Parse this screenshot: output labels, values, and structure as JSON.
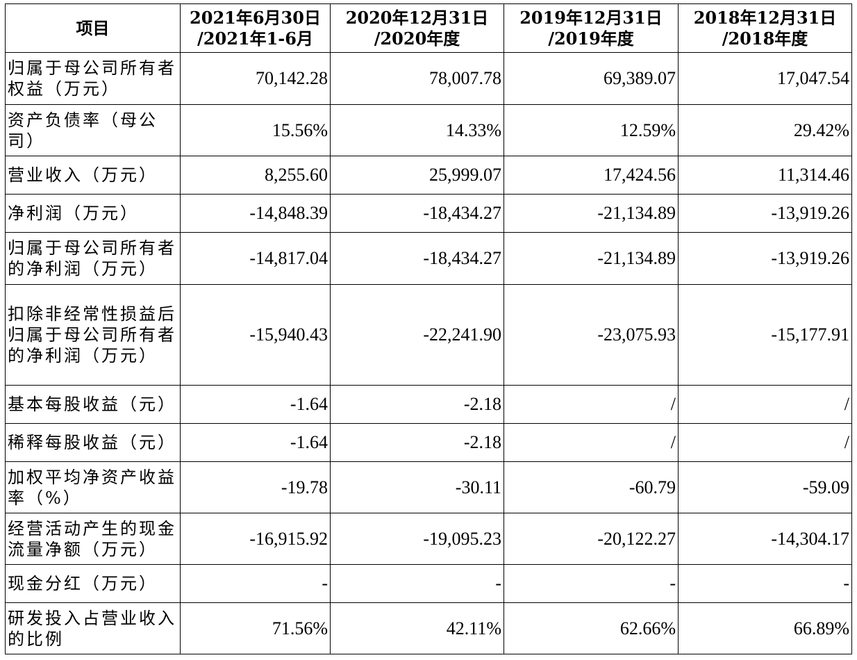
{
  "header": {
    "item": "项目",
    "columns": [
      {
        "line1": "2021年6月30日",
        "line2": "/2021年1-6月"
      },
      {
        "line1": "2020年12月31日",
        "line2": "/2020年度"
      },
      {
        "line1": "2019年12月31日",
        "line2": "/2019年度"
      },
      {
        "line1": "2018年12月31日",
        "line2": "/2018年度"
      }
    ]
  },
  "rows": [
    {
      "label": "归属于母公司所有者权益（万元）",
      "values": [
        "70,142.28",
        "78,007.78",
        "69,389.07",
        "17,047.54"
      ]
    },
    {
      "label": "资产负债率（母公司）",
      "values": [
        "15.56%",
        "14.33%",
        "12.59%",
        "29.42%"
      ]
    },
    {
      "label": "营业收入（万元）",
      "values": [
        "8,255.60",
        "25,999.07",
        "17,424.56",
        "11,314.46"
      ]
    },
    {
      "label": "净利润（万元）",
      "values": [
        "-14,848.39",
        "-18,434.27",
        "-21,134.89",
        "-13,919.26"
      ]
    },
    {
      "label": "归属于母公司所有者的净利润（万元）",
      "values": [
        "-14,817.04",
        "-18,434.27",
        "-21,134.89",
        "-13,919.26"
      ]
    },
    {
      "label": "扣除非经常性损益后归属于母公司所有者的净利润（万元）",
      "values": [
        "-15,940.43",
        "-22,241.90",
        "-23,075.93",
        "-15,177.91"
      ]
    },
    {
      "label": "基本每股收益（元）",
      "values": [
        "-1.64",
        "-2.18",
        "/",
        "/"
      ]
    },
    {
      "label": "稀释每股收益（元）",
      "values": [
        "-1.64",
        "-2.18",
        "/",
        "/"
      ]
    },
    {
      "label": "加权平均净资产收益率（%）",
      "values": [
        "-19.78",
        "-30.11",
        "-60.79",
        "-59.09"
      ]
    },
    {
      "label": "经营活动产生的现金流量净额（万元）",
      "values": [
        "-16,915.92",
        "-19,095.23",
        "-20,122.27",
        "-14,304.17"
      ]
    },
    {
      "label": "现金分红（万元）",
      "values": [
        "-",
        "-",
        "-",
        "-"
      ]
    },
    {
      "label": "研发投入占营业收入的比例",
      "values": [
        "71.56%",
        "42.11%",
        "62.66%",
        "66.89%"
      ]
    }
  ]
}
